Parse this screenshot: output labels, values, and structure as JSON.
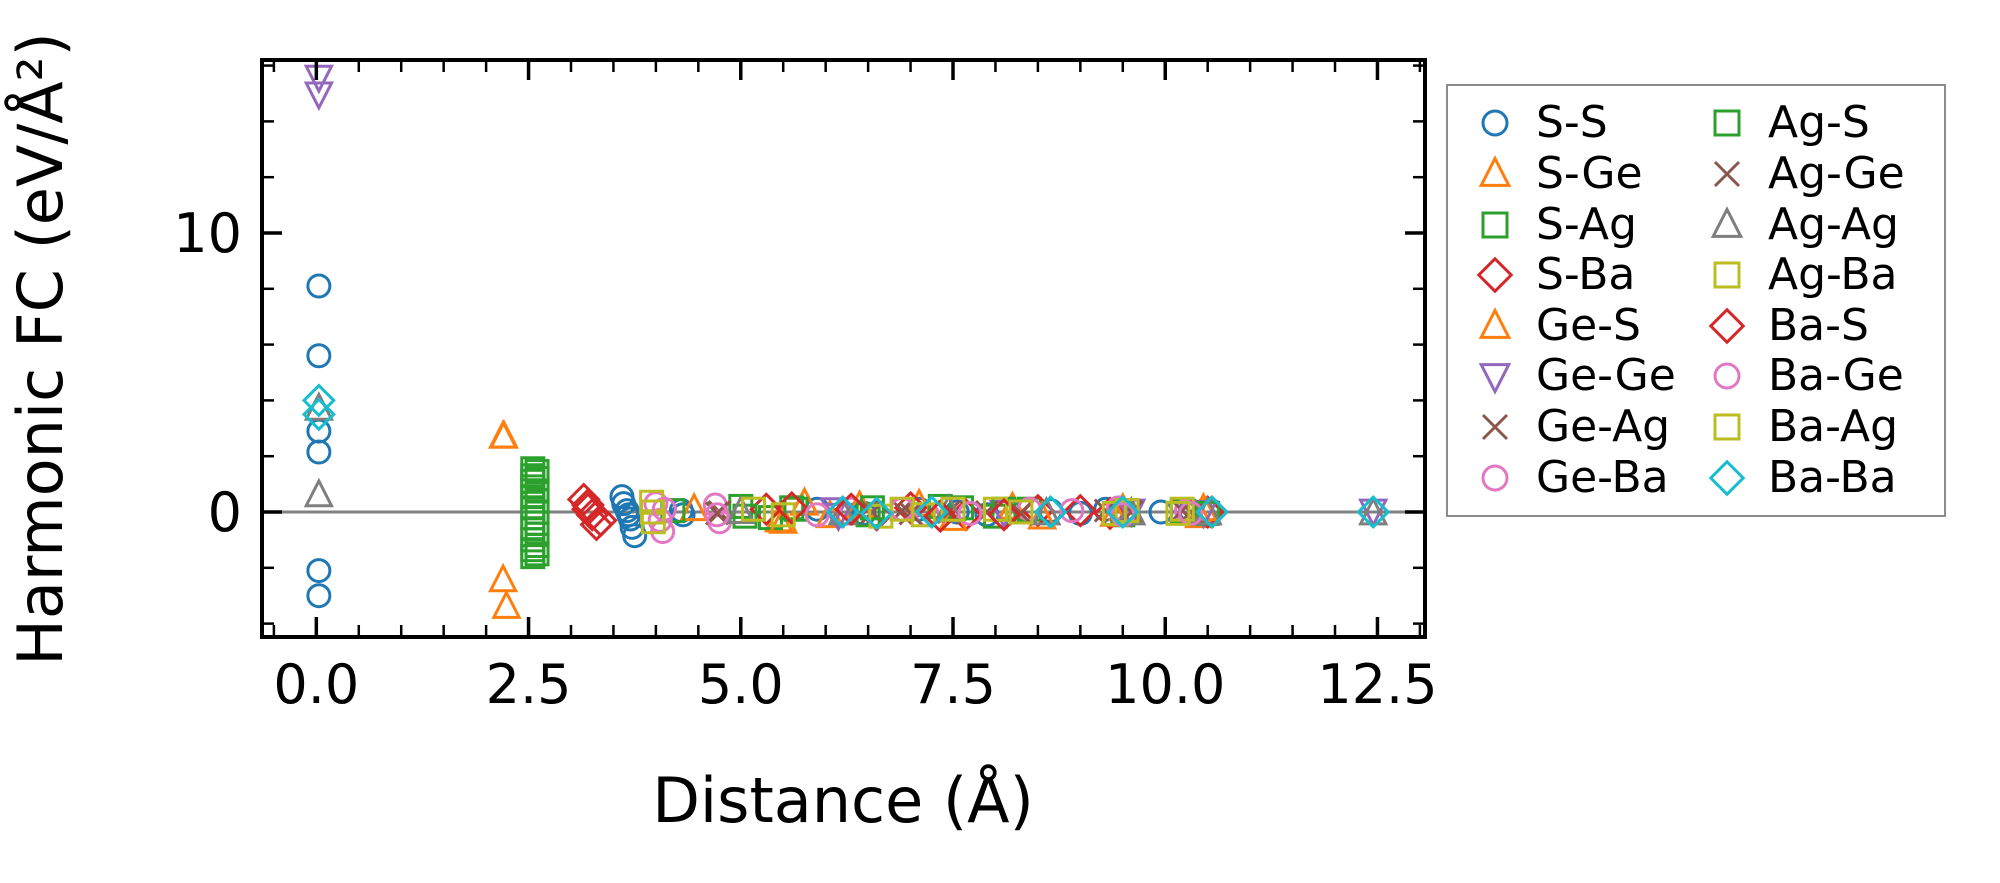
{
  "chart_data": {
    "type": "scatter",
    "title": "",
    "xlabel": "Distance (Å)",
    "ylabel": "Harmonic FC (eV/Å²)",
    "xlim": [
      -0.64,
      13.06
    ],
    "ylim": [
      -4.48,
      16.2
    ],
    "grid": false,
    "zero_line": {
      "y": 0,
      "color": "#808080"
    },
    "x_ticks": {
      "labels": [
        "0.0",
        "2.5",
        "5.0",
        "7.5",
        "10.0",
        "12.5"
      ],
      "values": [
        0,
        2.5,
        5,
        7.5,
        10,
        12.5
      ],
      "minor_step": 0.5
    },
    "y_ticks": {
      "labels": [
        "0",
        "10"
      ],
      "values": [
        0,
        10
      ],
      "minor_values": [
        -4,
        -2,
        2,
        4,
        6,
        8,
        12,
        14,
        16
      ]
    },
    "legend": {
      "position": "outside-right",
      "columns": 2,
      "order": "column-major",
      "border_color": "#8c8c8c"
    },
    "marker_style": {
      "fill": "none",
      "stroke_width": 3
    },
    "series": [
      {
        "name": "S-S",
        "marker": "circle",
        "color": "#1f77b4",
        "points": [
          [
            0.03,
            8.1
          ],
          [
            0.03,
            5.6
          ],
          [
            0.03,
            2.9
          ],
          [
            0.03,
            2.15
          ],
          [
            0.03,
            -2.1
          ],
          [
            0.03,
            -3.0
          ],
          [
            3.6,
            0.55
          ],
          [
            3.62,
            0.3
          ],
          [
            3.66,
            0.05
          ],
          [
            3.68,
            -0.1
          ],
          [
            3.7,
            -0.25
          ],
          [
            3.72,
            -0.55
          ],
          [
            3.75,
            -0.85
          ],
          [
            4.3,
            0.05
          ],
          [
            4.32,
            -0.1
          ],
          [
            5.9,
            0.1
          ],
          [
            6.45,
            -0.05
          ],
          [
            7.1,
            0.1
          ],
          [
            7.55,
            0.0
          ],
          [
            7.9,
            -0.1
          ],
          [
            8.65,
            0.05
          ],
          [
            9.0,
            -0.05
          ],
          [
            9.3,
            0.1
          ],
          [
            9.95,
            0.0
          ],
          [
            10.3,
            0.05
          ]
        ]
      },
      {
        "name": "S-Ge",
        "marker": "triangle-up",
        "color": "#ff7f0e",
        "points": [
          [
            2.2,
            2.7
          ],
          [
            2.2,
            -2.45
          ],
          [
            2.24,
            -3.4
          ],
          [
            4.45,
            0.1
          ],
          [
            5.45,
            -0.3
          ],
          [
            5.75,
            0.3
          ],
          [
            7.1,
            0.25
          ],
          [
            8.2,
            0.15
          ],
          [
            9.5,
            0.1
          ],
          [
            10.4,
            -0.15
          ]
        ]
      },
      {
        "name": "S-Ag",
        "marker": "square",
        "color": "#2ca02c",
        "points": [
          [
            2.55,
            1.55
          ],
          [
            2.55,
            1.3
          ],
          [
            2.55,
            1.1
          ],
          [
            2.55,
            0.9
          ],
          [
            2.55,
            0.55
          ],
          [
            2.55,
            0.15
          ],
          [
            2.55,
            -0.2
          ],
          [
            2.55,
            -0.6
          ],
          [
            2.55,
            -1.0
          ],
          [
            2.55,
            -1.35
          ],
          [
            2.55,
            -1.6
          ],
          [
            4.2,
            0.05
          ],
          [
            5.0,
            0.2
          ],
          [
            5.35,
            -0.2
          ],
          [
            5.6,
            0.15
          ],
          [
            6.5,
            -0.1
          ],
          [
            7.35,
            0.2
          ],
          [
            8.0,
            -0.15
          ],
          [
            8.4,
            0.1
          ],
          [
            9.5,
            -0.1
          ],
          [
            10.2,
            0.05
          ]
        ]
      },
      {
        "name": "S-Ba",
        "marker": "diamond",
        "color": "#d62728",
        "points": [
          [
            3.15,
            0.45
          ],
          [
            3.2,
            0.25
          ],
          [
            3.25,
            -0.1
          ],
          [
            3.3,
            -0.45
          ],
          [
            5.3,
            0.1
          ],
          [
            6.6,
            -0.1
          ],
          [
            7.0,
            0.15
          ],
          [
            7.65,
            -0.1
          ],
          [
            8.5,
            0.05
          ],
          [
            9.35,
            -0.05
          ],
          [
            10.5,
            0.0
          ]
        ]
      },
      {
        "name": "Ge-S",
        "marker": "triangle-up",
        "color": "#ff7f0e",
        "points": [
          [
            2.21,
            2.7
          ],
          [
            5.5,
            -0.35
          ],
          [
            6.05,
            -0.15
          ],
          [
            6.4,
            0.2
          ],
          [
            7.5,
            -0.25
          ],
          [
            8.55,
            -0.2
          ],
          [
            9.4,
            -0.1
          ],
          [
            10.45,
            0.1
          ]
        ]
      },
      {
        "name": "Ge-Ge",
        "marker": "triangle-down",
        "color": "#9467bd",
        "points": [
          [
            0.03,
            15.6
          ],
          [
            0.03,
            15.0
          ],
          [
            6.1,
            0.1
          ],
          [
            6.15,
            -0.1
          ],
          [
            8.1,
            0.0
          ],
          [
            9.6,
            0.05
          ],
          [
            10.45,
            0.0
          ],
          [
            12.45,
            0.05
          ]
        ]
      },
      {
        "name": "Ge-Ag",
        "marker": "x",
        "color": "#8c564b",
        "points": [
          [
            4.75,
            0.0
          ],
          [
            6.55,
            0.0
          ],
          [
            6.9,
            0.05
          ],
          [
            7.9,
            0.0
          ],
          [
            9.3,
            0.05
          ],
          [
            10.3,
            0.0
          ]
        ]
      },
      {
        "name": "Ge-Ba",
        "marker": "circle",
        "color": "#e377c2",
        "points": [
          [
            4.0,
            0.3
          ],
          [
            4.05,
            -0.3
          ],
          [
            4.08,
            -0.7
          ],
          [
            4.7,
            0.25
          ],
          [
            4.75,
            -0.35
          ],
          [
            6.3,
            0.1
          ],
          [
            7.2,
            -0.1
          ],
          [
            8.4,
            0.1
          ],
          [
            9.45,
            0.15
          ],
          [
            10.25,
            0.05
          ]
        ]
      },
      {
        "name": "Ag-S",
        "marker": "square",
        "color": "#2ca02c",
        "points": [
          [
            2.6,
            1.45
          ],
          [
            2.6,
            1.2
          ],
          [
            2.6,
            0.75
          ],
          [
            2.6,
            0.4
          ],
          [
            2.6,
            0.0
          ],
          [
            2.6,
            -0.4
          ],
          [
            2.6,
            -0.8
          ],
          [
            2.6,
            -1.2
          ],
          [
            2.6,
            -1.5
          ],
          [
            5.05,
            -0.15
          ],
          [
            5.65,
            0.1
          ],
          [
            6.55,
            0.15
          ],
          [
            7.6,
            0.15
          ],
          [
            8.1,
            0.1
          ],
          [
            9.55,
            0.05
          ],
          [
            10.5,
            -0.05
          ]
        ]
      },
      {
        "name": "Ag-Ge",
        "marker": "x",
        "color": "#8c564b",
        "points": [
          [
            4.72,
            -0.05
          ],
          [
            7.0,
            -0.05
          ],
          [
            7.45,
            0.0
          ],
          [
            8.3,
            -0.05
          ],
          [
            9.6,
            0.0
          ],
          [
            10.2,
            0.05
          ]
        ]
      },
      {
        "name": "Ag-Ag",
        "marker": "triangle-up",
        "color": "#7f7f7f",
        "points": [
          [
            0.03,
            3.7
          ],
          [
            0.03,
            0.6
          ],
          [
            5.0,
            0.0
          ],
          [
            6.2,
            -0.05
          ],
          [
            7.45,
            0.05
          ],
          [
            8.6,
            -0.05
          ],
          [
            9.6,
            -0.05
          ],
          [
            10.5,
            -0.05
          ],
          [
            12.45,
            -0.05
          ]
        ]
      },
      {
        "name": "Ag-Ba",
        "marker": "square",
        "color": "#bcbd22",
        "points": [
          [
            3.95,
            0.35
          ],
          [
            3.97,
            -0.35
          ],
          [
            5.15,
            0.1
          ],
          [
            6.65,
            -0.15
          ],
          [
            7.15,
            -0.1
          ],
          [
            8.0,
            0.1
          ],
          [
            9.4,
            -0.05
          ],
          [
            10.2,
            0.1
          ]
        ]
      },
      {
        "name": "Ba-S",
        "marker": "diamond",
        "color": "#d62728",
        "points": [
          [
            3.2,
            0.1
          ],
          [
            3.35,
            -0.3
          ],
          [
            5.6,
            0.15
          ],
          [
            6.3,
            0.1
          ],
          [
            7.35,
            -0.15
          ],
          [
            8.1,
            -0.1
          ],
          [
            9.0,
            0.05
          ],
          [
            10.55,
            0.0
          ]
        ]
      },
      {
        "name": "Ba-Ge",
        "marker": "circle",
        "color": "#e377c2",
        "points": [
          [
            4.1,
            0.1
          ],
          [
            4.72,
            -0.1
          ],
          [
            5.9,
            -0.1
          ],
          [
            6.9,
            0.1
          ],
          [
            7.7,
            -0.05
          ],
          [
            8.9,
            0.05
          ],
          [
            9.5,
            -0.1
          ],
          [
            10.3,
            -0.05
          ]
        ]
      },
      {
        "name": "Ba-Ag",
        "marker": "square",
        "color": "#bcbd22",
        "points": [
          [
            3.96,
            0.0
          ],
          [
            5.5,
            -0.1
          ],
          [
            6.9,
            0.1
          ],
          [
            7.5,
            0.1
          ],
          [
            8.3,
            0.0
          ],
          [
            9.55,
            0.05
          ],
          [
            10.15,
            -0.05
          ]
        ]
      },
      {
        "name": "Ba-Ba",
        "marker": "diamond",
        "color": "#17becf",
        "points": [
          [
            0.03,
            4.0
          ],
          [
            0.03,
            3.5
          ],
          [
            6.2,
            0.0
          ],
          [
            6.6,
            -0.05
          ],
          [
            7.25,
            0.0
          ],
          [
            8.65,
            0.0
          ],
          [
            9.5,
            0.0
          ],
          [
            10.55,
            0.0
          ],
          [
            12.45,
            0.0
          ]
        ]
      }
    ]
  }
}
